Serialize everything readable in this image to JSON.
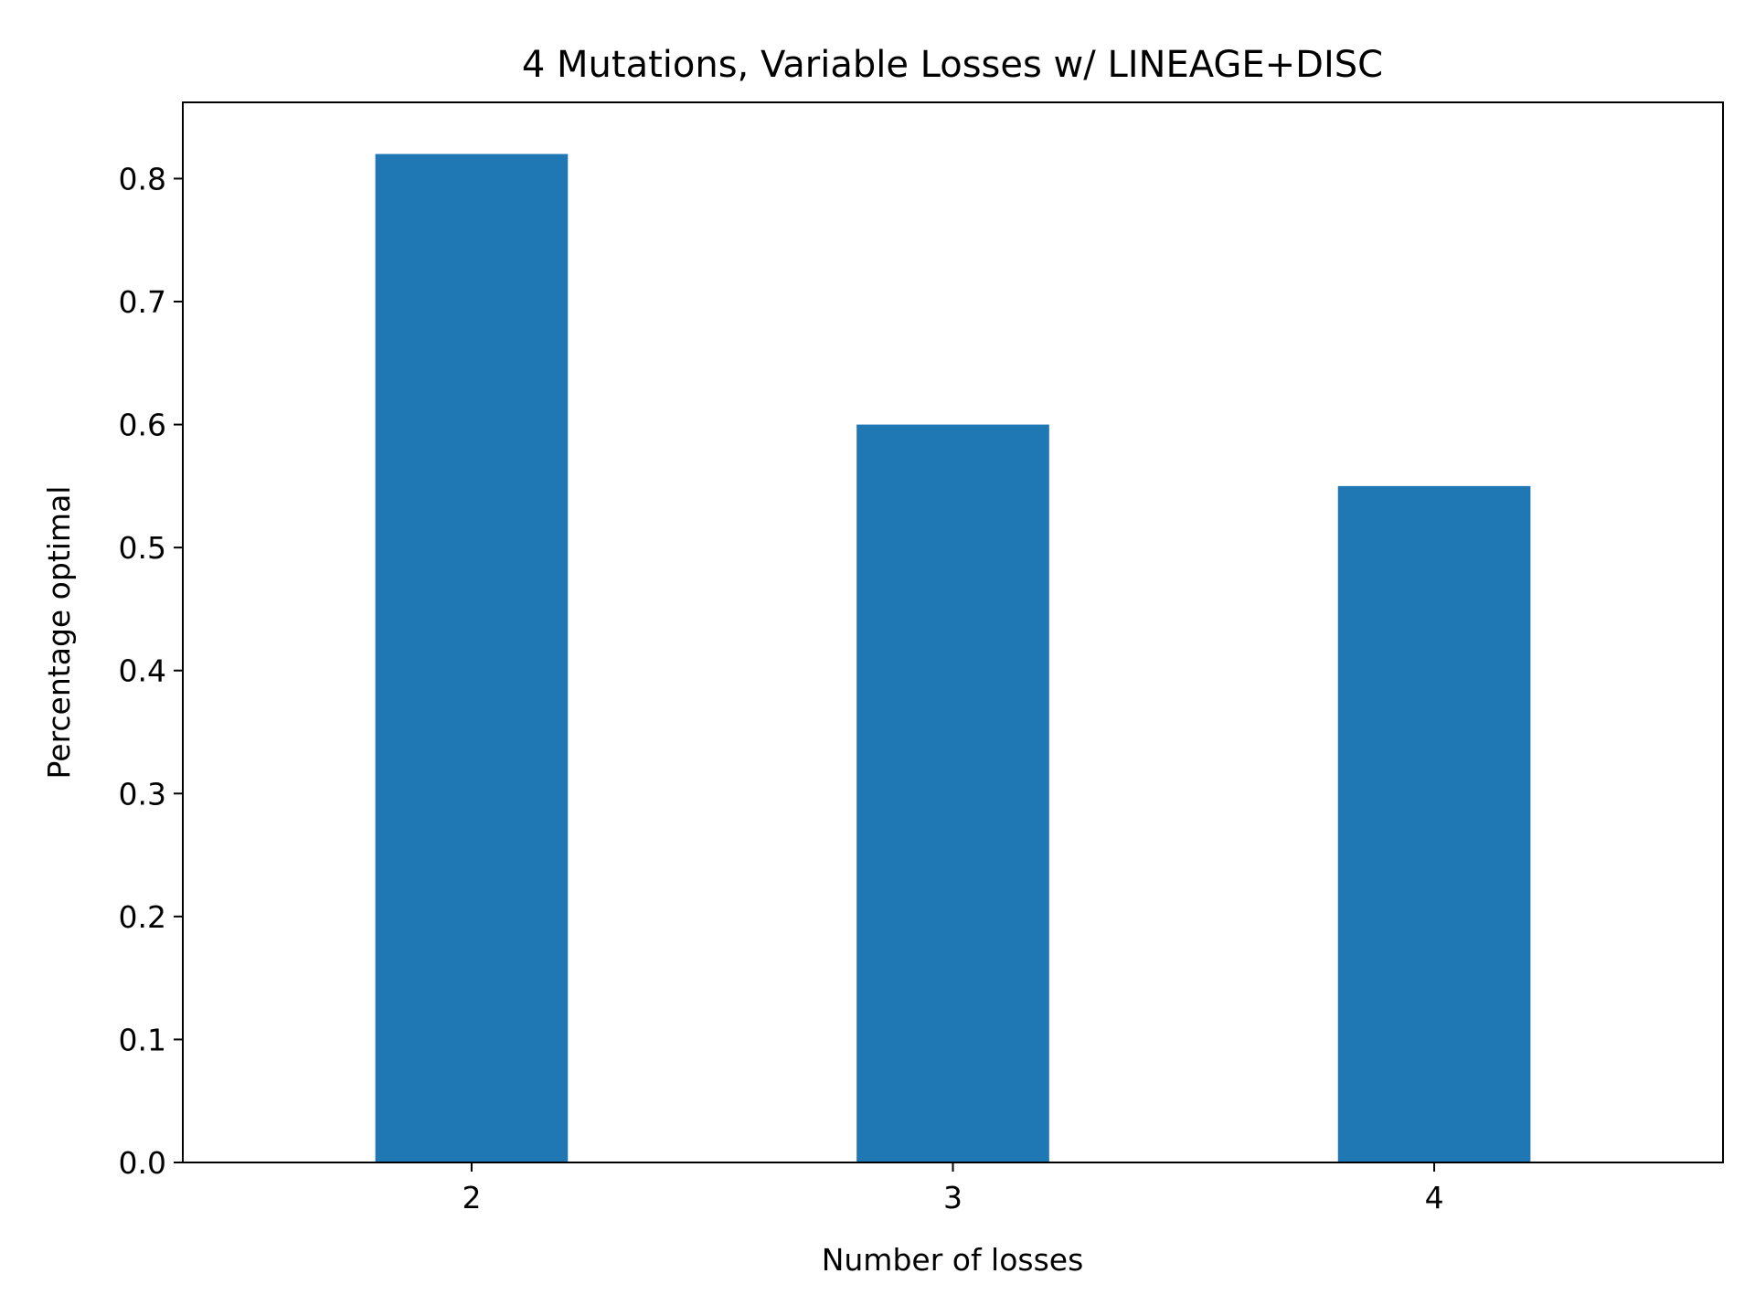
{
  "chart_data": {
    "type": "bar",
    "title": "4 Mutations, Variable Losses w/ LINEAGE+DISC",
    "xlabel": "Number of losses",
    "ylabel": "Percentage optimal",
    "categories": [
      "2",
      "3",
      "4"
    ],
    "values": [
      0.82,
      0.6,
      0.55
    ],
    "ylim": [
      0,
      0.862
    ],
    "yticks": [
      0.0,
      0.1,
      0.2,
      0.3,
      0.4,
      0.5,
      0.6,
      0.7,
      0.8
    ],
    "ytick_labels": [
      "0.0",
      "0.1",
      "0.2",
      "0.3",
      "0.4",
      "0.5",
      "0.6",
      "0.7",
      "0.8"
    ],
    "grid": false,
    "legend": "none",
    "bar_color": "#1f77b4"
  }
}
